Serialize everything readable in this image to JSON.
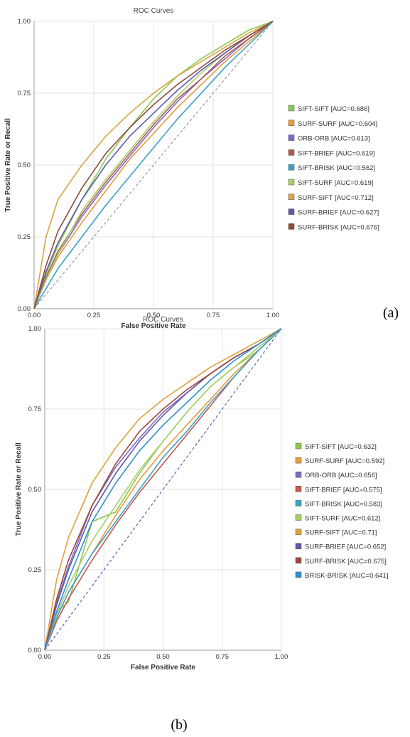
{
  "chart_data": [
    {
      "type": "line",
      "title": "ROC Curves",
      "xlabel": "False Positive Rate",
      "ylabel": "True Positive Rate or Recall",
      "xlim": [
        0,
        1
      ],
      "ylim": [
        0,
        1
      ],
      "x_ticks": [
        "0.00",
        "0.25",
        "0.50",
        "0.75",
        "1.00"
      ],
      "y_ticks": [
        "0.00",
        "0.25",
        "0.50",
        "0.75",
        "1.00"
      ],
      "grid": true,
      "legend_position": "right",
      "panel_label": "(a)",
      "series": [
        {
          "name": "SIFT-SIFT [AUC=0.686]",
          "color": "#8cc751",
          "x": [
            0,
            0.05,
            0.1,
            0.2,
            0.3,
            0.4,
            0.5,
            0.6,
            0.7,
            0.8,
            0.9,
            1.0
          ],
          "y": [
            0,
            0.12,
            0.22,
            0.38,
            0.52,
            0.63,
            0.73,
            0.81,
            0.87,
            0.92,
            0.97,
            1.0
          ]
        },
        {
          "name": "SURF-SURF [AUC=0.604]",
          "color": "#e89b3b",
          "x": [
            0,
            0.05,
            0.1,
            0.2,
            0.3,
            0.4,
            0.5,
            0.6,
            0.7,
            0.8,
            0.9,
            1.0
          ],
          "y": [
            0,
            0.1,
            0.18,
            0.3,
            0.41,
            0.52,
            0.61,
            0.7,
            0.78,
            0.86,
            0.93,
            1.0
          ]
        },
        {
          "name": "ORB-ORB [AUC=0.613]",
          "color": "#7b6bc4",
          "x": [
            0,
            0.05,
            0.1,
            0.2,
            0.3,
            0.4,
            0.5,
            0.6,
            0.7,
            0.8,
            0.9,
            1.0
          ],
          "y": [
            0,
            0.1,
            0.19,
            0.32,
            0.43,
            0.53,
            0.63,
            0.72,
            0.8,
            0.87,
            0.94,
            1.0
          ]
        },
        {
          "name": "SIFT-BRIEF [AUC=0.619]",
          "color": "#b05a4e",
          "x": [
            0,
            0.05,
            0.1,
            0.2,
            0.3,
            0.4,
            0.5,
            0.6,
            0.7,
            0.8,
            0.9,
            1.0
          ],
          "y": [
            0,
            0.11,
            0.2,
            0.33,
            0.44,
            0.54,
            0.64,
            0.73,
            0.8,
            0.88,
            0.94,
            1.0
          ]
        },
        {
          "name": "SIFT-BRISK [AUC=0.562]",
          "color": "#3aa0c7",
          "x": [
            0,
            0.05,
            0.1,
            0.2,
            0.3,
            0.4,
            0.5,
            0.6,
            0.7,
            0.8,
            0.9,
            1.0
          ],
          "y": [
            0,
            0.07,
            0.14,
            0.25,
            0.36,
            0.46,
            0.56,
            0.66,
            0.75,
            0.84,
            0.92,
            1.0
          ]
        },
        {
          "name": "SIFT-SURF [AUC=0.619]",
          "color": "#a8cf6a",
          "x": [
            0,
            0.05,
            0.1,
            0.2,
            0.3,
            0.4,
            0.5,
            0.6,
            0.7,
            0.8,
            0.9,
            1.0
          ],
          "y": [
            0,
            0.1,
            0.19,
            0.34,
            0.45,
            0.55,
            0.65,
            0.74,
            0.82,
            0.89,
            0.95,
            1.0
          ]
        },
        {
          "name": "SURF-SIFT [AUC=0.712]",
          "color": "#d9a441",
          "x": [
            0,
            0.05,
            0.1,
            0.2,
            0.3,
            0.4,
            0.5,
            0.6,
            0.7,
            0.8,
            0.9,
            1.0
          ],
          "y": [
            0,
            0.25,
            0.38,
            0.5,
            0.6,
            0.68,
            0.75,
            0.81,
            0.86,
            0.91,
            0.96,
            1.0
          ]
        },
        {
          "name": "SURF-BRIEF [AUC=0.627]",
          "color": "#5f5aa8",
          "x": [
            0,
            0.05,
            0.1,
            0.2,
            0.3,
            0.4,
            0.5,
            0.6,
            0.7,
            0.8,
            0.9,
            1.0
          ],
          "y": [
            0,
            0.13,
            0.23,
            0.38,
            0.5,
            0.6,
            0.68,
            0.76,
            0.83,
            0.89,
            0.95,
            1.0
          ]
        },
        {
          "name": "SURF-BRISK [AUC=0.676]",
          "color": "#8b4a3c",
          "x": [
            0,
            0.05,
            0.1,
            0.2,
            0.3,
            0.4,
            0.5,
            0.6,
            0.7,
            0.8,
            0.9,
            1.0
          ],
          "y": [
            0,
            0.15,
            0.27,
            0.42,
            0.54,
            0.63,
            0.71,
            0.78,
            0.84,
            0.9,
            0.95,
            1.0
          ]
        }
      ]
    },
    {
      "type": "line",
      "title": "ROC Curves",
      "xlabel": "False Positive Rate",
      "ylabel": "True Positive Rate or Recall",
      "xlim": [
        0,
        1
      ],
      "ylim": [
        0,
        1
      ],
      "x_ticks": [
        "0.00",
        "0.25",
        "0.50",
        "0.75",
        "1.00"
      ],
      "y_ticks": [
        "0.00",
        "0.25",
        "0.50",
        "0.75",
        "1.00"
      ],
      "grid": true,
      "legend_position": "right",
      "panel_label": "(b)",
      "series": [
        {
          "name": "SIFT-SIFT [AUC=0.632]",
          "color": "#8cc751",
          "x": [
            0,
            0.05,
            0.1,
            0.2,
            0.3,
            0.4,
            0.5,
            0.6,
            0.7,
            0.8,
            0.9,
            1.0
          ],
          "y": [
            0,
            0.12,
            0.15,
            0.4,
            0.43,
            0.55,
            0.65,
            0.74,
            0.82,
            0.88,
            0.93,
            1.0
          ]
        },
        {
          "name": "SURF-SURF [AUC=0.592]",
          "color": "#e89b3b",
          "x": [
            0,
            0.05,
            0.1,
            0.2,
            0.3,
            0.4,
            0.5,
            0.6,
            0.7,
            0.8,
            0.9,
            1.0
          ],
          "y": [
            0,
            0.1,
            0.18,
            0.3,
            0.42,
            0.53,
            0.62,
            0.7,
            0.78,
            0.86,
            0.93,
            1.0
          ]
        },
        {
          "name": "ORB-ORB [AUC=0.656]",
          "color": "#7b6bc4",
          "x": [
            0,
            0.05,
            0.1,
            0.2,
            0.3,
            0.4,
            0.5,
            0.6,
            0.7,
            0.8,
            0.9,
            1.0
          ],
          "y": [
            0,
            0.15,
            0.26,
            0.45,
            0.57,
            0.66,
            0.74,
            0.8,
            0.86,
            0.91,
            0.95,
            1.0
          ]
        },
        {
          "name": "SIFT-BRIEF [AUC=0.575]",
          "color": "#c8574a",
          "x": [
            0,
            0.05,
            0.1,
            0.2,
            0.3,
            0.4,
            0.5,
            0.6,
            0.7,
            0.8,
            0.9,
            1.0
          ],
          "y": [
            0,
            0.09,
            0.16,
            0.28,
            0.39,
            0.49,
            0.58,
            0.67,
            0.76,
            0.85,
            0.93,
            1.0
          ]
        },
        {
          "name": "SIFT-BRISK [AUC=0.583]",
          "color": "#3aa0c7",
          "x": [
            0,
            0.05,
            0.1,
            0.2,
            0.3,
            0.4,
            0.5,
            0.6,
            0.7,
            0.8,
            0.9,
            1.0
          ],
          "y": [
            0,
            0.1,
            0.18,
            0.3,
            0.4,
            0.5,
            0.6,
            0.68,
            0.77,
            0.85,
            0.93,
            1.0
          ]
        },
        {
          "name": "SIFT-SURF [AUC=0.612]",
          "color": "#a8cf6a",
          "x": [
            0,
            0.05,
            0.1,
            0.2,
            0.3,
            0.4,
            0.5,
            0.6,
            0.7,
            0.8,
            0.9,
            1.0
          ],
          "y": [
            0,
            0.11,
            0.2,
            0.34,
            0.45,
            0.56,
            0.65,
            0.74,
            0.82,
            0.88,
            0.94,
            1.0
          ]
        },
        {
          "name": "SURF-SIFT [AUC=0.71]",
          "color": "#e0a03a",
          "x": [
            0,
            0.05,
            0.1,
            0.2,
            0.3,
            0.4,
            0.5,
            0.6,
            0.7,
            0.8,
            0.9,
            1.0
          ],
          "y": [
            0,
            0.22,
            0.35,
            0.52,
            0.63,
            0.72,
            0.78,
            0.83,
            0.88,
            0.92,
            0.96,
            1.0
          ]
        },
        {
          "name": "SURF-BRIEF [AUC=0.652]",
          "color": "#5f5aa8",
          "x": [
            0,
            0.05,
            0.1,
            0.2,
            0.3,
            0.4,
            0.5,
            0.6,
            0.7,
            0.8,
            0.9,
            1.0
          ],
          "y": [
            0,
            0.14,
            0.25,
            0.43,
            0.55,
            0.65,
            0.73,
            0.8,
            0.86,
            0.91,
            0.95,
            1.0
          ]
        },
        {
          "name": "SURF-BRISK [AUC=0.675]",
          "color": "#a0463a",
          "x": [
            0,
            0.05,
            0.1,
            0.2,
            0.3,
            0.4,
            0.5,
            0.6,
            0.7,
            0.8,
            0.9,
            1.0
          ],
          "y": [
            0,
            0.16,
            0.28,
            0.45,
            0.58,
            0.68,
            0.75,
            0.81,
            0.86,
            0.91,
            0.95,
            1.0
          ]
        },
        {
          "name": "BRISK-BRISK [AUC=0.641]",
          "color": "#2f8fd0",
          "x": [
            0,
            0.05,
            0.1,
            0.2,
            0.3,
            0.4,
            0.5,
            0.6,
            0.7,
            0.8,
            0.9,
            1.0
          ],
          "y": [
            0,
            0.12,
            0.22,
            0.4,
            0.52,
            0.62,
            0.7,
            0.77,
            0.84,
            0.9,
            0.95,
            1.0
          ]
        }
      ]
    }
  ]
}
